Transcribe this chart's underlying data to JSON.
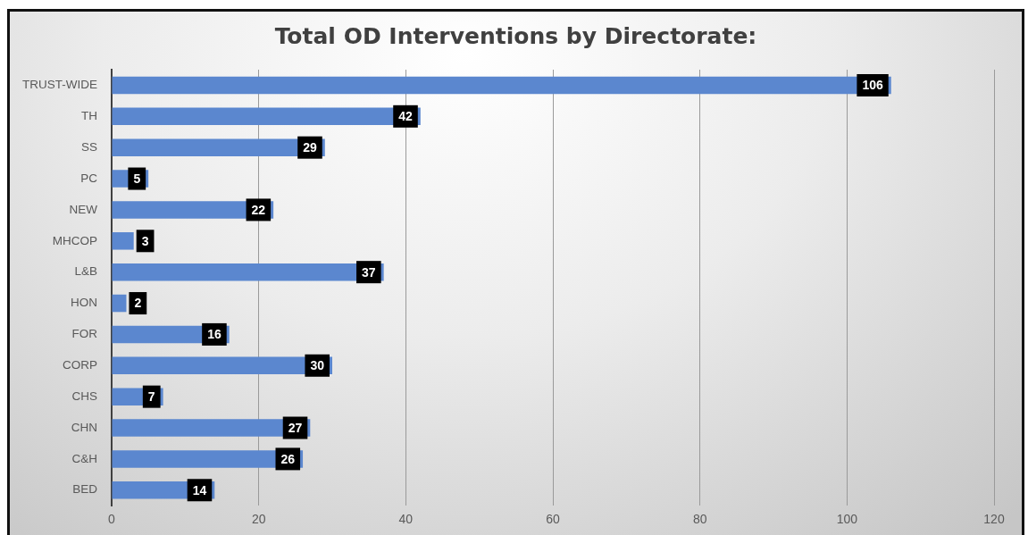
{
  "chart_data": {
    "type": "bar",
    "orientation": "horizontal",
    "title": "Total OD Interventions by Directorate:",
    "categories": [
      "TRUST-WIDE",
      "TH",
      "SS",
      "PC",
      "NEW",
      "MHCOP",
      "L&B",
      "HON",
      "FOR",
      "CORP",
      "CHS",
      "CHN",
      "C&H",
      "BED"
    ],
    "values": [
      106,
      42,
      29,
      5,
      22,
      3,
      37,
      2,
      16,
      30,
      7,
      27,
      26,
      14
    ],
    "color": "#5b87cf",
    "xlim": [
      0,
      120
    ],
    "xticks": [
      0,
      20,
      40,
      60,
      80,
      100,
      120
    ],
    "grid": "x",
    "data_labels": true
  }
}
